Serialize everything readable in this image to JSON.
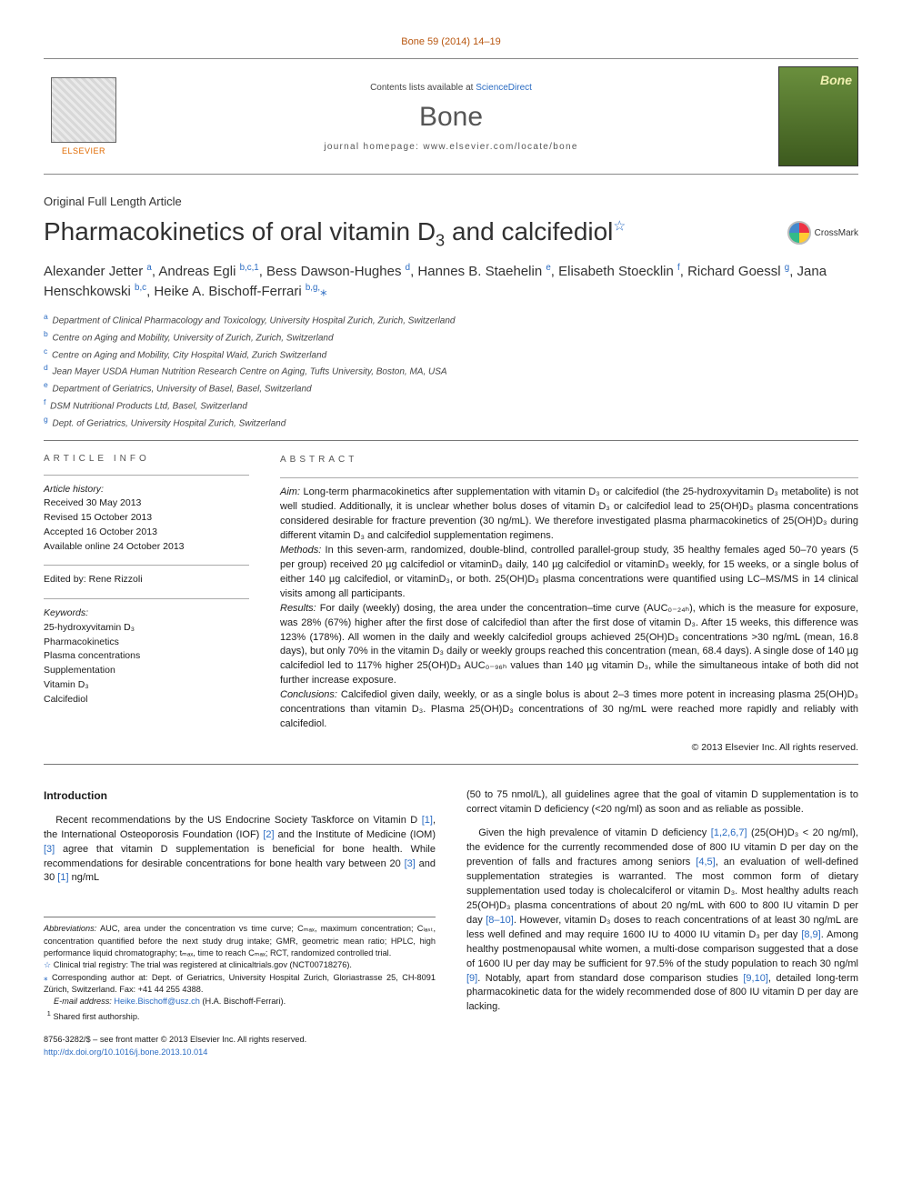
{
  "journal_ref": "Bone 59 (2014) 14–19",
  "header": {
    "contents_prefix": "Contents lists available at ",
    "contents_link": "ScienceDirect",
    "journal_name": "Bone",
    "homepage_label": "journal homepage: www.elsevier.com/locate/bone",
    "elsevier_label": "ELSEVIER",
    "cover_label": "Bone"
  },
  "article_type": "Original Full Length Article",
  "title_html": "Pharmacokinetics of oral vitamin D<sub>3</sub> and calcifediol",
  "crossmark_label": "CrossMark",
  "authors_html": "Alexander Jetter <sup>a</sup>, Andreas Egli <sup>b,c,1</sup>, Bess Dawson-Hughes <sup>d</sup>, Hannes B. Staehelin <sup>e</sup>, Elisabeth Stoecklin <sup>f</sup>, Richard Goessl <sup>g</sup>, Jana Henschkowski <sup>b,c</sup>, Heike A. Bischoff-Ferrari <sup>b,g,</sup><span class='corr'>⁎</span>",
  "affiliations": [
    {
      "key": "a",
      "text": "Department of Clinical Pharmacology and Toxicology, University Hospital Zurich, Zurich, Switzerland"
    },
    {
      "key": "b",
      "text": "Centre on Aging and Mobility, University of Zurich, Zurich, Switzerland"
    },
    {
      "key": "c",
      "text": "Centre on Aging and Mobility, City Hospital Waid, Zurich Switzerland"
    },
    {
      "key": "d",
      "text": "Jean Mayer USDA Human Nutrition Research Centre on Aging, Tufts University, Boston, MA, USA"
    },
    {
      "key": "e",
      "text": "Department of Geriatrics, University of Basel, Basel, Switzerland"
    },
    {
      "key": "f",
      "text": "DSM Nutritional Products Ltd, Basel, Switzerland"
    },
    {
      "key": "g",
      "text": "Dept. of Geriatrics, University Hospital Zurich, Switzerland"
    }
  ],
  "article_info": {
    "heading": "ARTICLE INFO",
    "history_label": "Article history:",
    "history": [
      "Received 30 May 2013",
      "Revised 15 October 2013",
      "Accepted 16 October 2013",
      "Available online 24 October 2013"
    ],
    "edited_by_label": "Edited by: Rene Rizzoli",
    "keywords_label": "Keywords:",
    "keywords": [
      "25-hydroxyvitamin D₃",
      "Pharmacokinetics",
      "Plasma concentrations",
      "Supplementation",
      "Vitamin D₃",
      "Calcifediol"
    ]
  },
  "abstract": {
    "heading": "ABSTRACT",
    "sections": [
      {
        "label": "Aim:",
        "text": "Long-term pharmacokinetics after supplementation with vitamin D₃ or calcifediol (the 25-hydroxyvitamin D₃ metabolite) is not well studied. Additionally, it is unclear whether bolus doses of vitamin D₃ or calcifediol lead to 25(OH)D₃ plasma concentrations considered desirable for fracture prevention (30 ng/mL). We therefore investigated plasma pharmacokinetics of 25(OH)D₃ during different vitamin D₃ and calcifediol supplementation regimens."
      },
      {
        "label": "Methods:",
        "text": "In this seven-arm, randomized, double-blind, controlled parallel-group study, 35 healthy females aged 50–70 years (5 per group) received 20 µg calcifediol or vitaminD₃ daily, 140 µg calcifediol or vitaminD₃ weekly, for 15 weeks, or a single bolus of either 140 µg calcifediol, or vitaminD₃, or both. 25(OH)D₃ plasma concentrations were quantified using LC–MS/MS in 14 clinical visits among all participants."
      },
      {
        "label": "Results:",
        "text": "For daily (weekly) dosing, the area under the concentration–time curve (AUC₀₋₂₄ₕ), which is the measure for exposure, was 28% (67%) higher after the first dose of calcifediol than after the first dose of vitamin D₃. After 15 weeks, this difference was 123% (178%). All women in the daily and weekly calcifediol groups achieved 25(OH)D₃ concentrations >30 ng/mL (mean, 16.8 days), but only 70% in the vitamin D₃ daily or weekly groups reached this concentration (mean, 68.4 days). A single dose of 140 µg calcifediol led to 117% higher 25(OH)D₃ AUC₀₋₉₆ₕ values than 140 µg vitamin D₃, while the simultaneous intake of both did not further increase exposure."
      },
      {
        "label": "Conclusions:",
        "text": "Calcifediol given daily, weekly, or as a single bolus is about 2–3 times more potent in increasing plasma 25(OH)D₃ concentrations than vitamin D₃. Plasma 25(OH)D₃ concentrations of 30 ng/mL were reached more rapidly and reliably with calcifediol."
      }
    ],
    "copyright": "© 2013 Elsevier Inc. All rights reserved."
  },
  "intro_heading": "Introduction",
  "intro_left_html": "Recent recommendations by the US Endocrine Society Taskforce on Vitamin D <span class='ref'>[1]</span>, the International Osteoporosis Foundation (IOF) <span class='ref'>[2]</span> and the Institute of Medicine (IOM) <span class='ref'>[3]</span> agree that vitamin D supplementation is beneficial for bone health. While recommendations for desirable concentrations for bone health vary between 20 <span class='ref'>[3]</span> and 30 <span class='ref'>[1]</span> ng/mL",
  "intro_right_p1_html": "(50 to 75 nmol/L), all guidelines agree that the goal of vitamin D supplementation is to correct vitamin D deficiency (&lt;20 ng/ml) as soon and as reliable as possible.",
  "intro_right_p2_html": "Given the high prevalence of vitamin D deficiency <span class='ref'>[1,2,6,7]</span> (25(OH)D₃ &lt; 20 ng/ml), the evidence for the currently recommended dose of 800 IU vitamin D per day on the prevention of falls and fractures among seniors <span class='ref'>[4,5]</span>, an evaluation of well-defined supplementation strategies is warranted. The most common form of dietary supplementation used today is cholecalciferol or vitamin D₃. Most healthy adults reach 25(OH)D₃ plasma concentrations of about 20 ng/mL with 600 to 800 IU vitamin D per day <span class='ref'>[8–10]</span>. However, vitamin D₃ doses to reach concentrations of at least 30 ng/mL are less well defined and may require 1600 IU to 4000 IU vitamin D₃ per day <span class='ref'>[8,9]</span>. Among healthy postmenopausal white women, a multi-dose comparison suggested that a dose of 1600 IU per day may be sufficient for 97.5% of the study population to reach 30 ng/ml <span class='ref'>[9]</span>. Notably, apart from standard dose comparison studies <span class='ref'>[9,10]</span>, detailed long-term pharmacokinetic data for the widely recommended dose of 800 IU vitamin D per day are lacking.",
  "footnotes": {
    "abbrev_label": "Abbreviations:",
    "abbrev_text": "AUC, area under the concentration vs time curve; Cₘₐₓ, maximum concentration; Cₗₐₛₜ, concentration quantified before the next study drug intake; GMR, geometric mean ratio; HPLC, high performance liquid chromatography; tₘₐₓ, time to reach Cₘₐₓ; RCT, randomized controlled trial.",
    "trial_registry": "Clinical trial registry: The trial was registered at clinicaltrials.gov (NCT00718276).",
    "corresponding": "Corresponding author at: Dept. of Geriatrics, University Hospital Zurich, Gloriastrasse 25, CH-8091 Zürich, Switzerland. Fax: +41 44 255 4388.",
    "email_label": "E-mail address:",
    "email": "Heike.Bischoff@usz.ch",
    "email_name": "(H.A. Bischoff-Ferrari).",
    "shared": "Shared first authorship."
  },
  "front_matter": {
    "line1": "8756-3282/$ – see front matter © 2013 Elsevier Inc. All rights reserved.",
    "doi": "http://dx.doi.org/10.1016/j.bone.2013.10.014"
  },
  "colors": {
    "link": "#2a6bc2",
    "accent_orange": "#b8560f",
    "text": "#1a1a1a",
    "rule": "#777777"
  },
  "typography": {
    "body_pt": 11,
    "title_pt": 28,
    "journal_name_pt": 30,
    "meta_pt": 10.5,
    "footnote_pt": 9.2
  }
}
